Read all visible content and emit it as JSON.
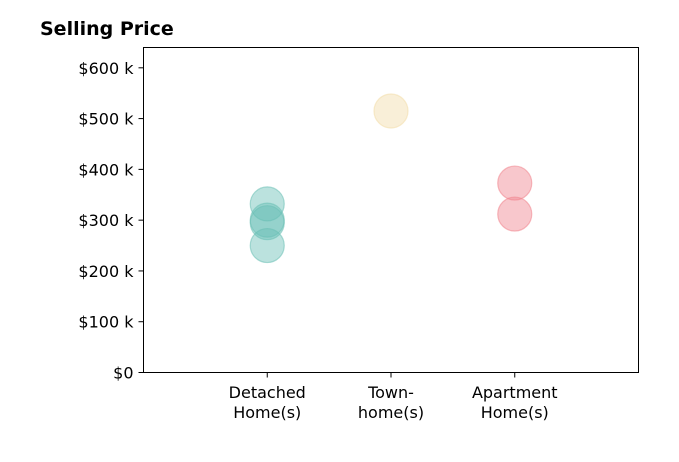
{
  "chart_data": {
    "type": "scatter",
    "title": "Selling Price",
    "xlabel": "",
    "ylabel": "",
    "categories": [
      [
        "Detached",
        "Home(s)"
      ],
      [
        "Town-",
        "home(s)"
      ],
      [
        "Apartment",
        "Home(s)"
      ]
    ],
    "xlim": [
      0,
      4
    ],
    "ylim": [
      0,
      640000
    ],
    "yticks": [
      0,
      100000,
      200000,
      300000,
      400000,
      500000,
      600000
    ],
    "ytick_labels": [
      "$0",
      "$100 k",
      "$200 k",
      "$300 k",
      "$400 k",
      "$500 k",
      "$600 k"
    ],
    "grid": false,
    "series": [
      {
        "color": "#69bfb5",
        "points": [
          {
            "x": 1,
            "y": 332000
          },
          {
            "x": 1,
            "y": 300000
          },
          {
            "x": 1,
            "y": 295000
          },
          {
            "x": 1,
            "y": 250000
          }
        ]
      },
      {
        "color": "#f2dca8",
        "points": [
          {
            "x": 2,
            "y": 515000
          }
        ]
      },
      {
        "color": "#f0838d",
        "points": [
          {
            "x": 3,
            "y": 373000
          },
          {
            "x": 3,
            "y": 312000
          }
        ]
      }
    ]
  }
}
